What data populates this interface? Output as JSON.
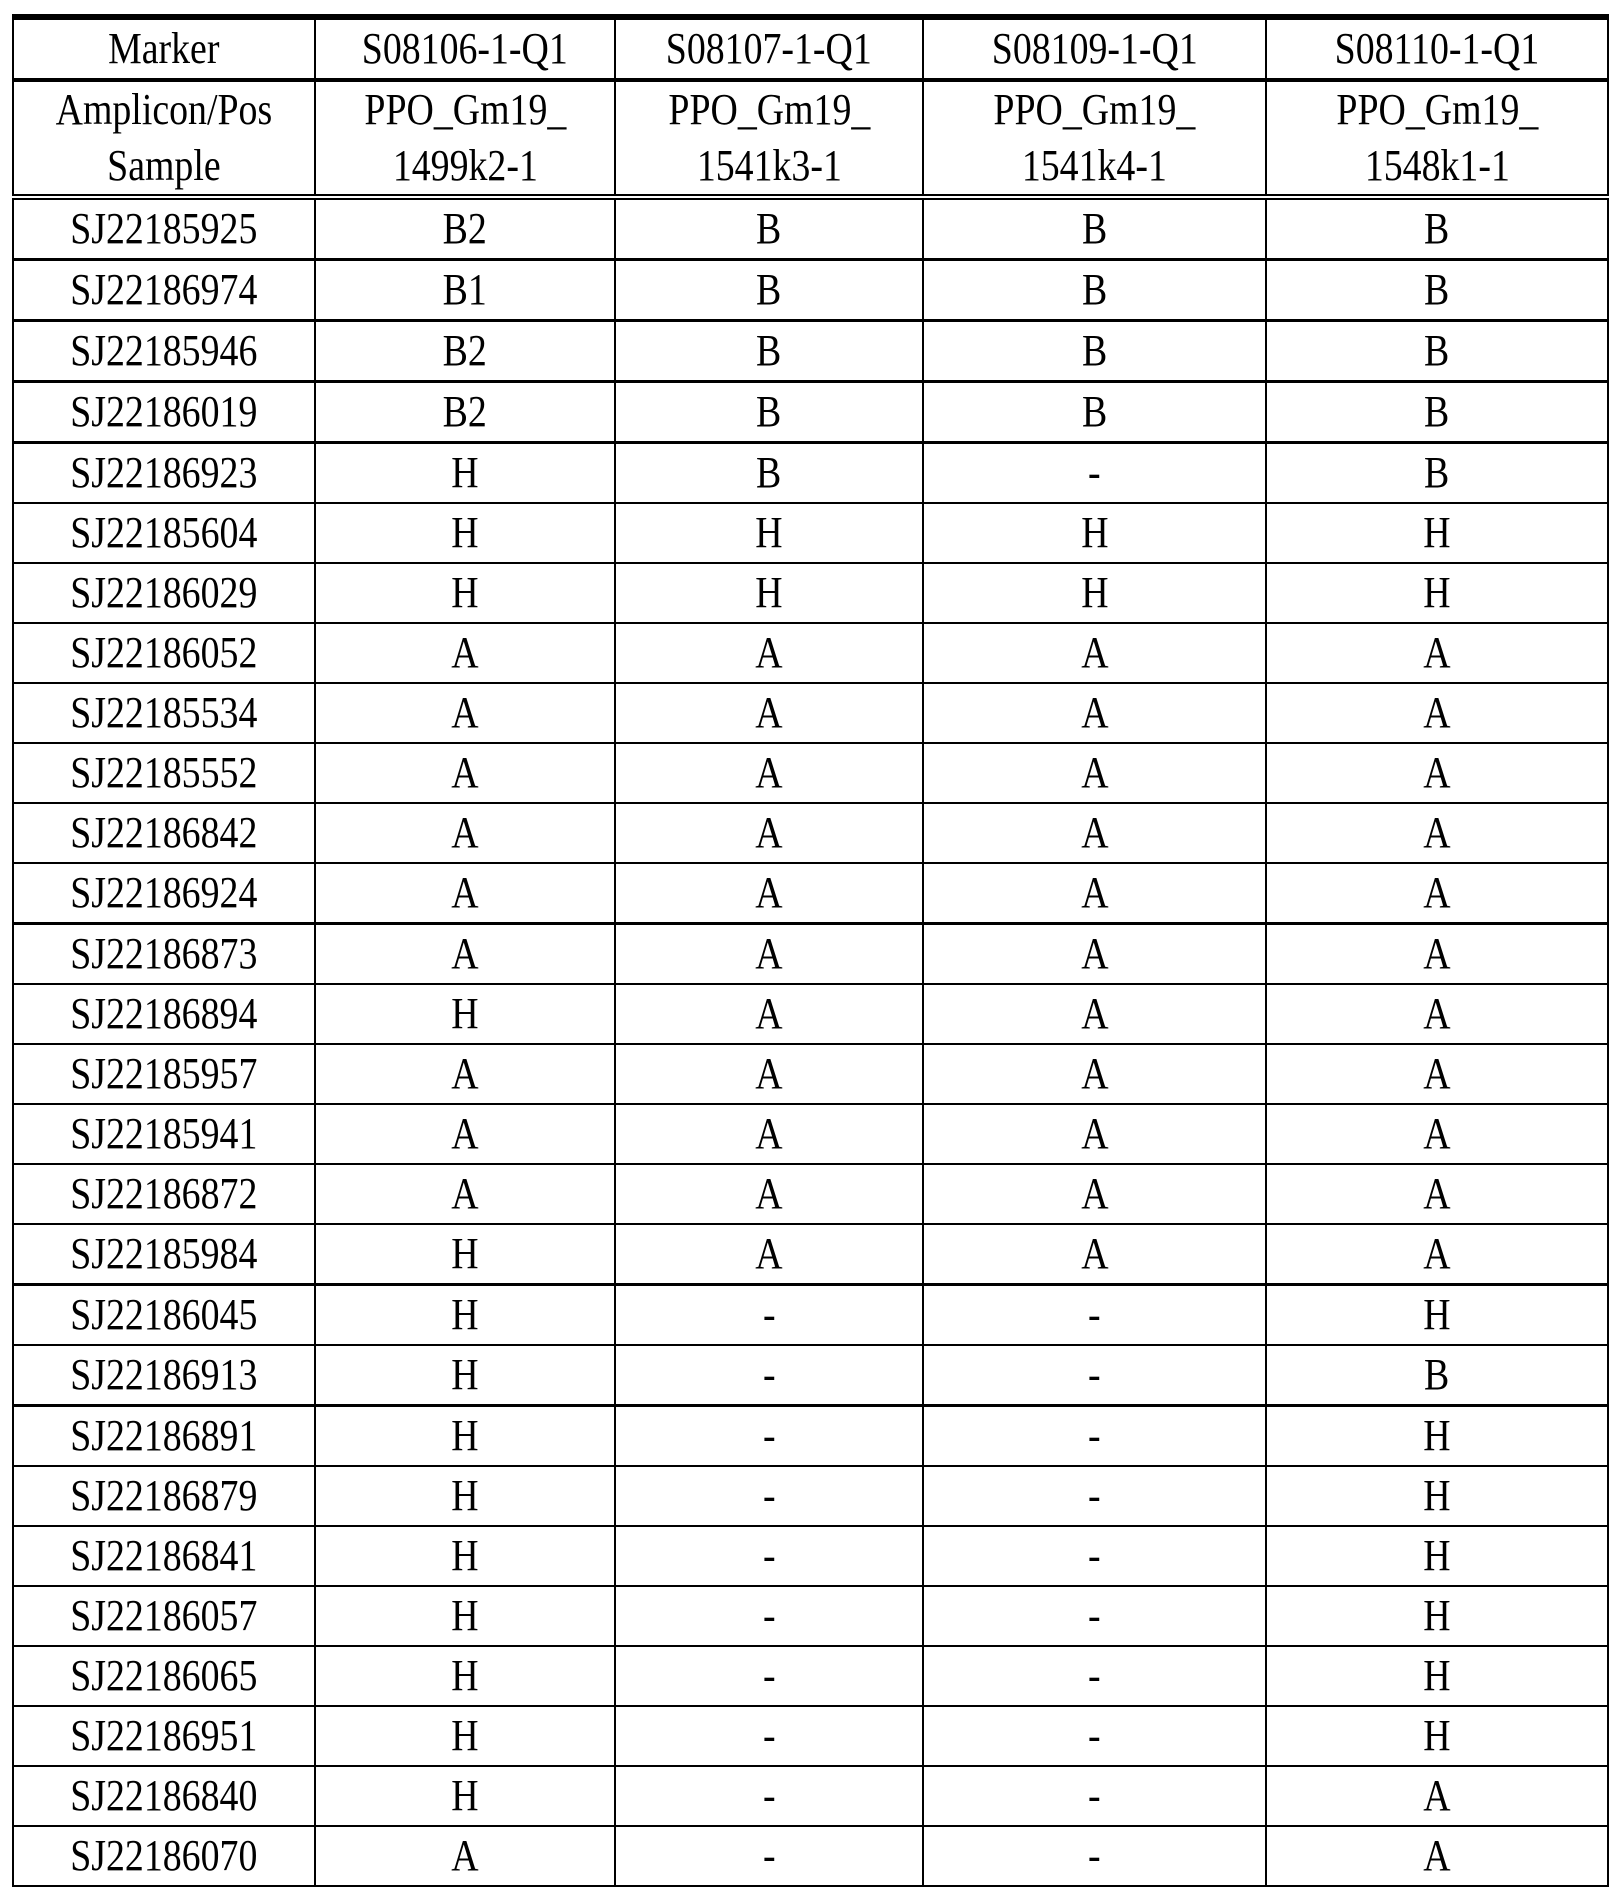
{
  "table": {
    "marker_label": "Marker",
    "amplicon_label": "Amplicon/Pos\nSample",
    "markers": [
      "S08106-1-Q1",
      "S08107-1-Q1",
      "S08109-1-Q1",
      "S08110-1-Q1"
    ],
    "amplicons": [
      "PPO_Gm19_\n1499k2-1",
      "PPO_Gm19_\n1541k3-1",
      "PPO_Gm19_\n1541k4-1",
      "PPO_Gm19_\n1548k1-1"
    ],
    "rows": [
      [
        "SJ22185925",
        "B2",
        "B",
        "B",
        "B"
      ],
      [
        "SJ22186974",
        "B1",
        "B",
        "B",
        "B"
      ],
      [
        "SJ22185946",
        "B2",
        "B",
        "B",
        "B"
      ],
      [
        "SJ22186019",
        "B2",
        "B",
        "B",
        "B"
      ],
      [
        "SJ22186923",
        "H",
        "B",
        "-",
        "B"
      ],
      [
        "SJ22185604",
        "H",
        "H",
        "H",
        "H"
      ],
      [
        "SJ22186029",
        "H",
        "H",
        "H",
        "H"
      ],
      [
        "SJ22186052",
        "A",
        "A",
        "A",
        "A"
      ],
      [
        "SJ22185534",
        "A",
        "A",
        "A",
        "A"
      ],
      [
        "SJ22185552",
        "A",
        "A",
        "A",
        "A"
      ],
      [
        "SJ22186842",
        "A",
        "A",
        "A",
        "A"
      ],
      [
        "SJ22186924",
        "A",
        "A",
        "A",
        "A"
      ],
      [
        "SJ22186873",
        "A",
        "A",
        "A",
        "A"
      ],
      [
        "SJ22186894",
        "H",
        "A",
        "A",
        "A"
      ],
      [
        "SJ22185957",
        "A",
        "A",
        "A",
        "A"
      ],
      [
        "SJ22185941",
        "A",
        "A",
        "A",
        "A"
      ],
      [
        "SJ22186872",
        "A",
        "A",
        "A",
        "A"
      ],
      [
        "SJ22185984",
        "H",
        "A",
        "A",
        "A"
      ],
      [
        "SJ22186045",
        "H",
        "-",
        "-",
        "H"
      ],
      [
        "SJ22186913",
        "H",
        "-",
        "-",
        "B"
      ],
      [
        "SJ22186891",
        "H",
        "-",
        "-",
        "H"
      ],
      [
        "SJ22186879",
        "H",
        "-",
        "-",
        "H"
      ],
      [
        "SJ22186841",
        "H",
        "-",
        "-",
        "H"
      ],
      [
        "SJ22186057",
        "H",
        "-",
        "-",
        "H"
      ],
      [
        "SJ22186065",
        "H",
        "-",
        "-",
        "H"
      ],
      [
        "SJ22186951",
        "H",
        "-",
        "-",
        "H"
      ],
      [
        "SJ22186840",
        "H",
        "-",
        "-",
        "A"
      ],
      [
        "SJ22186070",
        "A",
        "-",
        "-",
        "A"
      ]
    ]
  }
}
